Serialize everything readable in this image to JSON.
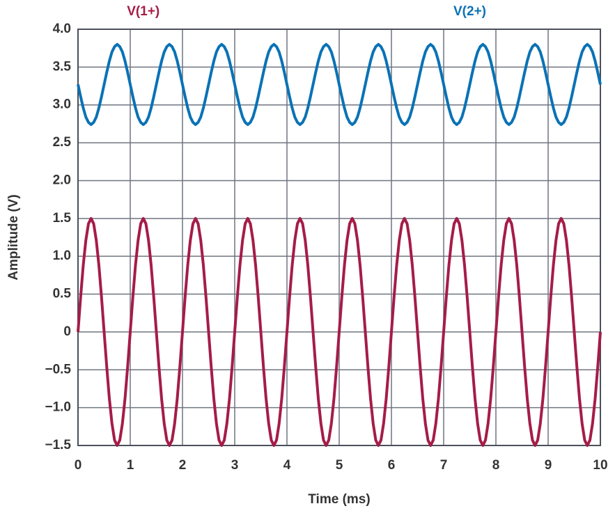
{
  "chart_data": {
    "type": "line",
    "xlabel": "Time (ms)",
    "ylabel": "Amplitude (V)",
    "xlim": [
      0,
      10
    ],
    "ylim": [
      -1.5,
      4
    ],
    "xticks": [
      0,
      1,
      2,
      3,
      4,
      5,
      6,
      7,
      8,
      9,
      10
    ],
    "yticks": [
      {
        "value": -1.5,
        "label": "−1.5"
      },
      {
        "value": -1,
        "label": "−1.0"
      },
      {
        "value": -0.5,
        "label": "−0.5"
      },
      0,
      0.5,
      {
        "value": 1,
        "label": "1.0"
      },
      1.5,
      {
        "value": 2,
        "label": "2.0"
      },
      2.5,
      {
        "value": 3,
        "label": "3.0"
      },
      3.5,
      {
        "value": 4,
        "label": "4.0"
      }
    ],
    "grid": true,
    "x": [
      0,
      0.05,
      0.1,
      0.15,
      0.2,
      0.25,
      0.3,
      0.35,
      0.4,
      0.45,
      0.5,
      0.55,
      0.6,
      0.65,
      0.7,
      0.75,
      0.8,
      0.85,
      0.9,
      0.95,
      1,
      1.05,
      1.1,
      1.15,
      1.2,
      1.25,
      1.3,
      1.35,
      1.4,
      1.45,
      1.5,
      1.55,
      1.6,
      1.65,
      1.7,
      1.75,
      1.8,
      1.85,
      1.9,
      1.95,
      2,
      2.05,
      2.1,
      2.15,
      2.2,
      2.25,
      2.3,
      2.35,
      2.4,
      2.45,
      2.5,
      2.55,
      2.6,
      2.65,
      2.7,
      2.75,
      2.8,
      2.85,
      2.9,
      2.95,
      3,
      3.05,
      3.1,
      3.15,
      3.2,
      3.25,
      3.3,
      3.35,
      3.4,
      3.45,
      3.5,
      3.55,
      3.6,
      3.65,
      3.7,
      3.75,
      3.8,
      3.85,
      3.9,
      3.95,
      4,
      4.05,
      4.1,
      4.15,
      4.2,
      4.25,
      4.3,
      4.35,
      4.4,
      4.45,
      4.5,
      4.55,
      4.6,
      4.65,
      4.7,
      4.75,
      4.8,
      4.85,
      4.9,
      4.95,
      5,
      5.05,
      5.1,
      5.15,
      5.2,
      5.25,
      5.3,
      5.35,
      5.4,
      5.45,
      5.5,
      5.55,
      5.6,
      5.65,
      5.7,
      5.75,
      5.8,
      5.85,
      5.9,
      5.95,
      6,
      6.05,
      6.1,
      6.15,
      6.2,
      6.25,
      6.3,
      6.35,
      6.4,
      6.45,
      6.5,
      6.55,
      6.6,
      6.65,
      6.7,
      6.75,
      6.8,
      6.85,
      6.9,
      6.95,
      7,
      7.05,
      7.1,
      7.15,
      7.2,
      7.25,
      7.3,
      7.35,
      7.4,
      7.45,
      7.5,
      7.55,
      7.6,
      7.65,
      7.7,
      7.75,
      7.8,
      7.85,
      7.9,
      7.95,
      8,
      8.05,
      8.1,
      8.15,
      8.2,
      8.25,
      8.3,
      8.35,
      8.4,
      8.45,
      8.5,
      8.55,
      8.6,
      8.65,
      8.7,
      8.75,
      8.8,
      8.85,
      8.9,
      8.95,
      9,
      9.05,
      9.1,
      9.15,
      9.2,
      9.25,
      9.3,
      9.35,
      9.4,
      9.45,
      9.5,
      9.55,
      9.6,
      9.65,
      9.7,
      9.75,
      9.8,
      9.85,
      9.9,
      9.95,
      10
    ],
    "series": [
      {
        "name": "V(1+)",
        "color": "#a51c48",
        "values": [
          0,
          0.46,
          0.88,
          1.21,
          1.43,
          1.5,
          1.43,
          1.21,
          0.88,
          0.46,
          0,
          -0.46,
          -0.88,
          -1.21,
          -1.43,
          -1.5,
          -1.43,
          -1.21,
          -0.88,
          -0.46,
          0,
          0.46,
          0.88,
          1.21,
          1.43,
          1.5,
          1.43,
          1.21,
          0.88,
          0.46,
          0,
          -0.46,
          -0.88,
          -1.21,
          -1.43,
          -1.5,
          -1.43,
          -1.21,
          -0.88,
          -0.46,
          0,
          0.46,
          0.88,
          1.21,
          1.43,
          1.5,
          1.43,
          1.21,
          0.88,
          0.46,
          0,
          -0.46,
          -0.88,
          -1.21,
          -1.43,
          -1.5,
          -1.43,
          -1.21,
          -0.88,
          -0.46,
          0,
          0.46,
          0.88,
          1.21,
          1.43,
          1.5,
          1.43,
          1.21,
          0.88,
          0.46,
          0,
          -0.46,
          -0.88,
          -1.21,
          -1.43,
          -1.5,
          -1.43,
          -1.21,
          -0.88,
          -0.46,
          0,
          0.46,
          0.88,
          1.21,
          1.43,
          1.5,
          1.43,
          1.21,
          0.88,
          0.46,
          0,
          -0.46,
          -0.88,
          -1.21,
          -1.43,
          -1.5,
          -1.43,
          -1.21,
          -0.88,
          -0.46,
          0,
          0.46,
          0.88,
          1.21,
          1.43,
          1.5,
          1.43,
          1.21,
          0.88,
          0.46,
          0,
          -0.46,
          -0.88,
          -1.21,
          -1.43,
          -1.5,
          -1.43,
          -1.21,
          -0.88,
          -0.46,
          0,
          0.46,
          0.88,
          1.21,
          1.43,
          1.5,
          1.43,
          1.21,
          0.88,
          0.46,
          0,
          -0.46,
          -0.88,
          -1.21,
          -1.43,
          -1.5,
          -1.43,
          -1.21,
          -0.88,
          -0.46,
          0,
          0.46,
          0.88,
          1.21,
          1.43,
          1.5,
          1.43,
          1.21,
          0.88,
          0.46,
          0,
          -0.46,
          -0.88,
          -1.21,
          -1.43,
          -1.5,
          -1.43,
          -1.21,
          -0.88,
          -0.46,
          0,
          0.46,
          0.88,
          1.21,
          1.43,
          1.5,
          1.43,
          1.21,
          0.88,
          0.46,
          0,
          -0.46,
          -0.88,
          -1.21,
          -1.43,
          -1.5,
          -1.43,
          -1.21,
          -0.88,
          -0.46,
          0,
          0.46,
          0.88,
          1.21,
          1.43,
          1.5,
          1.43,
          1.21,
          0.88,
          0.46,
          0,
          -0.46,
          -0.88,
          -1.21,
          -1.43,
          -1.5,
          -1.43,
          -1.21,
          -0.88,
          -0.46,
          0
        ]
      },
      {
        "name": "V(2+)",
        "color": "#0a72b5",
        "values": [
          3.27,
          3.11,
          2.96,
          2.84,
          2.77,
          2.74,
          2.77,
          2.84,
          2.96,
          3.11,
          3.27,
          3.43,
          3.58,
          3.7,
          3.77,
          3.8,
          3.77,
          3.7,
          3.58,
          3.43,
          3.27,
          3.11,
          2.96,
          2.84,
          2.77,
          2.74,
          2.77,
          2.84,
          2.96,
          3.11,
          3.27,
          3.43,
          3.58,
          3.7,
          3.77,
          3.8,
          3.77,
          3.7,
          3.58,
          3.43,
          3.27,
          3.11,
          2.96,
          2.84,
          2.77,
          2.74,
          2.77,
          2.84,
          2.96,
          3.11,
          3.27,
          3.43,
          3.58,
          3.7,
          3.77,
          3.8,
          3.77,
          3.7,
          3.58,
          3.43,
          3.27,
          3.11,
          2.96,
          2.84,
          2.77,
          2.74,
          2.77,
          2.84,
          2.96,
          3.11,
          3.27,
          3.43,
          3.58,
          3.7,
          3.77,
          3.8,
          3.77,
          3.7,
          3.58,
          3.43,
          3.27,
          3.11,
          2.96,
          2.84,
          2.77,
          2.74,
          2.77,
          2.84,
          2.96,
          3.11,
          3.27,
          3.43,
          3.58,
          3.7,
          3.77,
          3.8,
          3.77,
          3.7,
          3.58,
          3.43,
          3.27,
          3.11,
          2.96,
          2.84,
          2.77,
          2.74,
          2.77,
          2.84,
          2.96,
          3.11,
          3.27,
          3.43,
          3.58,
          3.7,
          3.77,
          3.8,
          3.77,
          3.7,
          3.58,
          3.43,
          3.27,
          3.11,
          2.96,
          2.84,
          2.77,
          2.74,
          2.77,
          2.84,
          2.96,
          3.11,
          3.27,
          3.43,
          3.58,
          3.7,
          3.77,
          3.8,
          3.77,
          3.7,
          3.58,
          3.43,
          3.27,
          3.11,
          2.96,
          2.84,
          2.77,
          2.74,
          2.77,
          2.84,
          2.96,
          3.11,
          3.27,
          3.43,
          3.58,
          3.7,
          3.77,
          3.8,
          3.77,
          3.7,
          3.58,
          3.43,
          3.27,
          3.11,
          2.96,
          2.84,
          2.77,
          2.74,
          2.77,
          2.84,
          2.96,
          3.11,
          3.27,
          3.43,
          3.58,
          3.7,
          3.77,
          3.8,
          3.77,
          3.7,
          3.58,
          3.43,
          3.27,
          3.11,
          2.96,
          2.84,
          2.77,
          2.74,
          2.77,
          2.84,
          2.96,
          3.11,
          3.27,
          3.43,
          3.58,
          3.7,
          3.77,
          3.8,
          3.77,
          3.7,
          3.58,
          3.43,
          3.27
        ]
      }
    ]
  }
}
